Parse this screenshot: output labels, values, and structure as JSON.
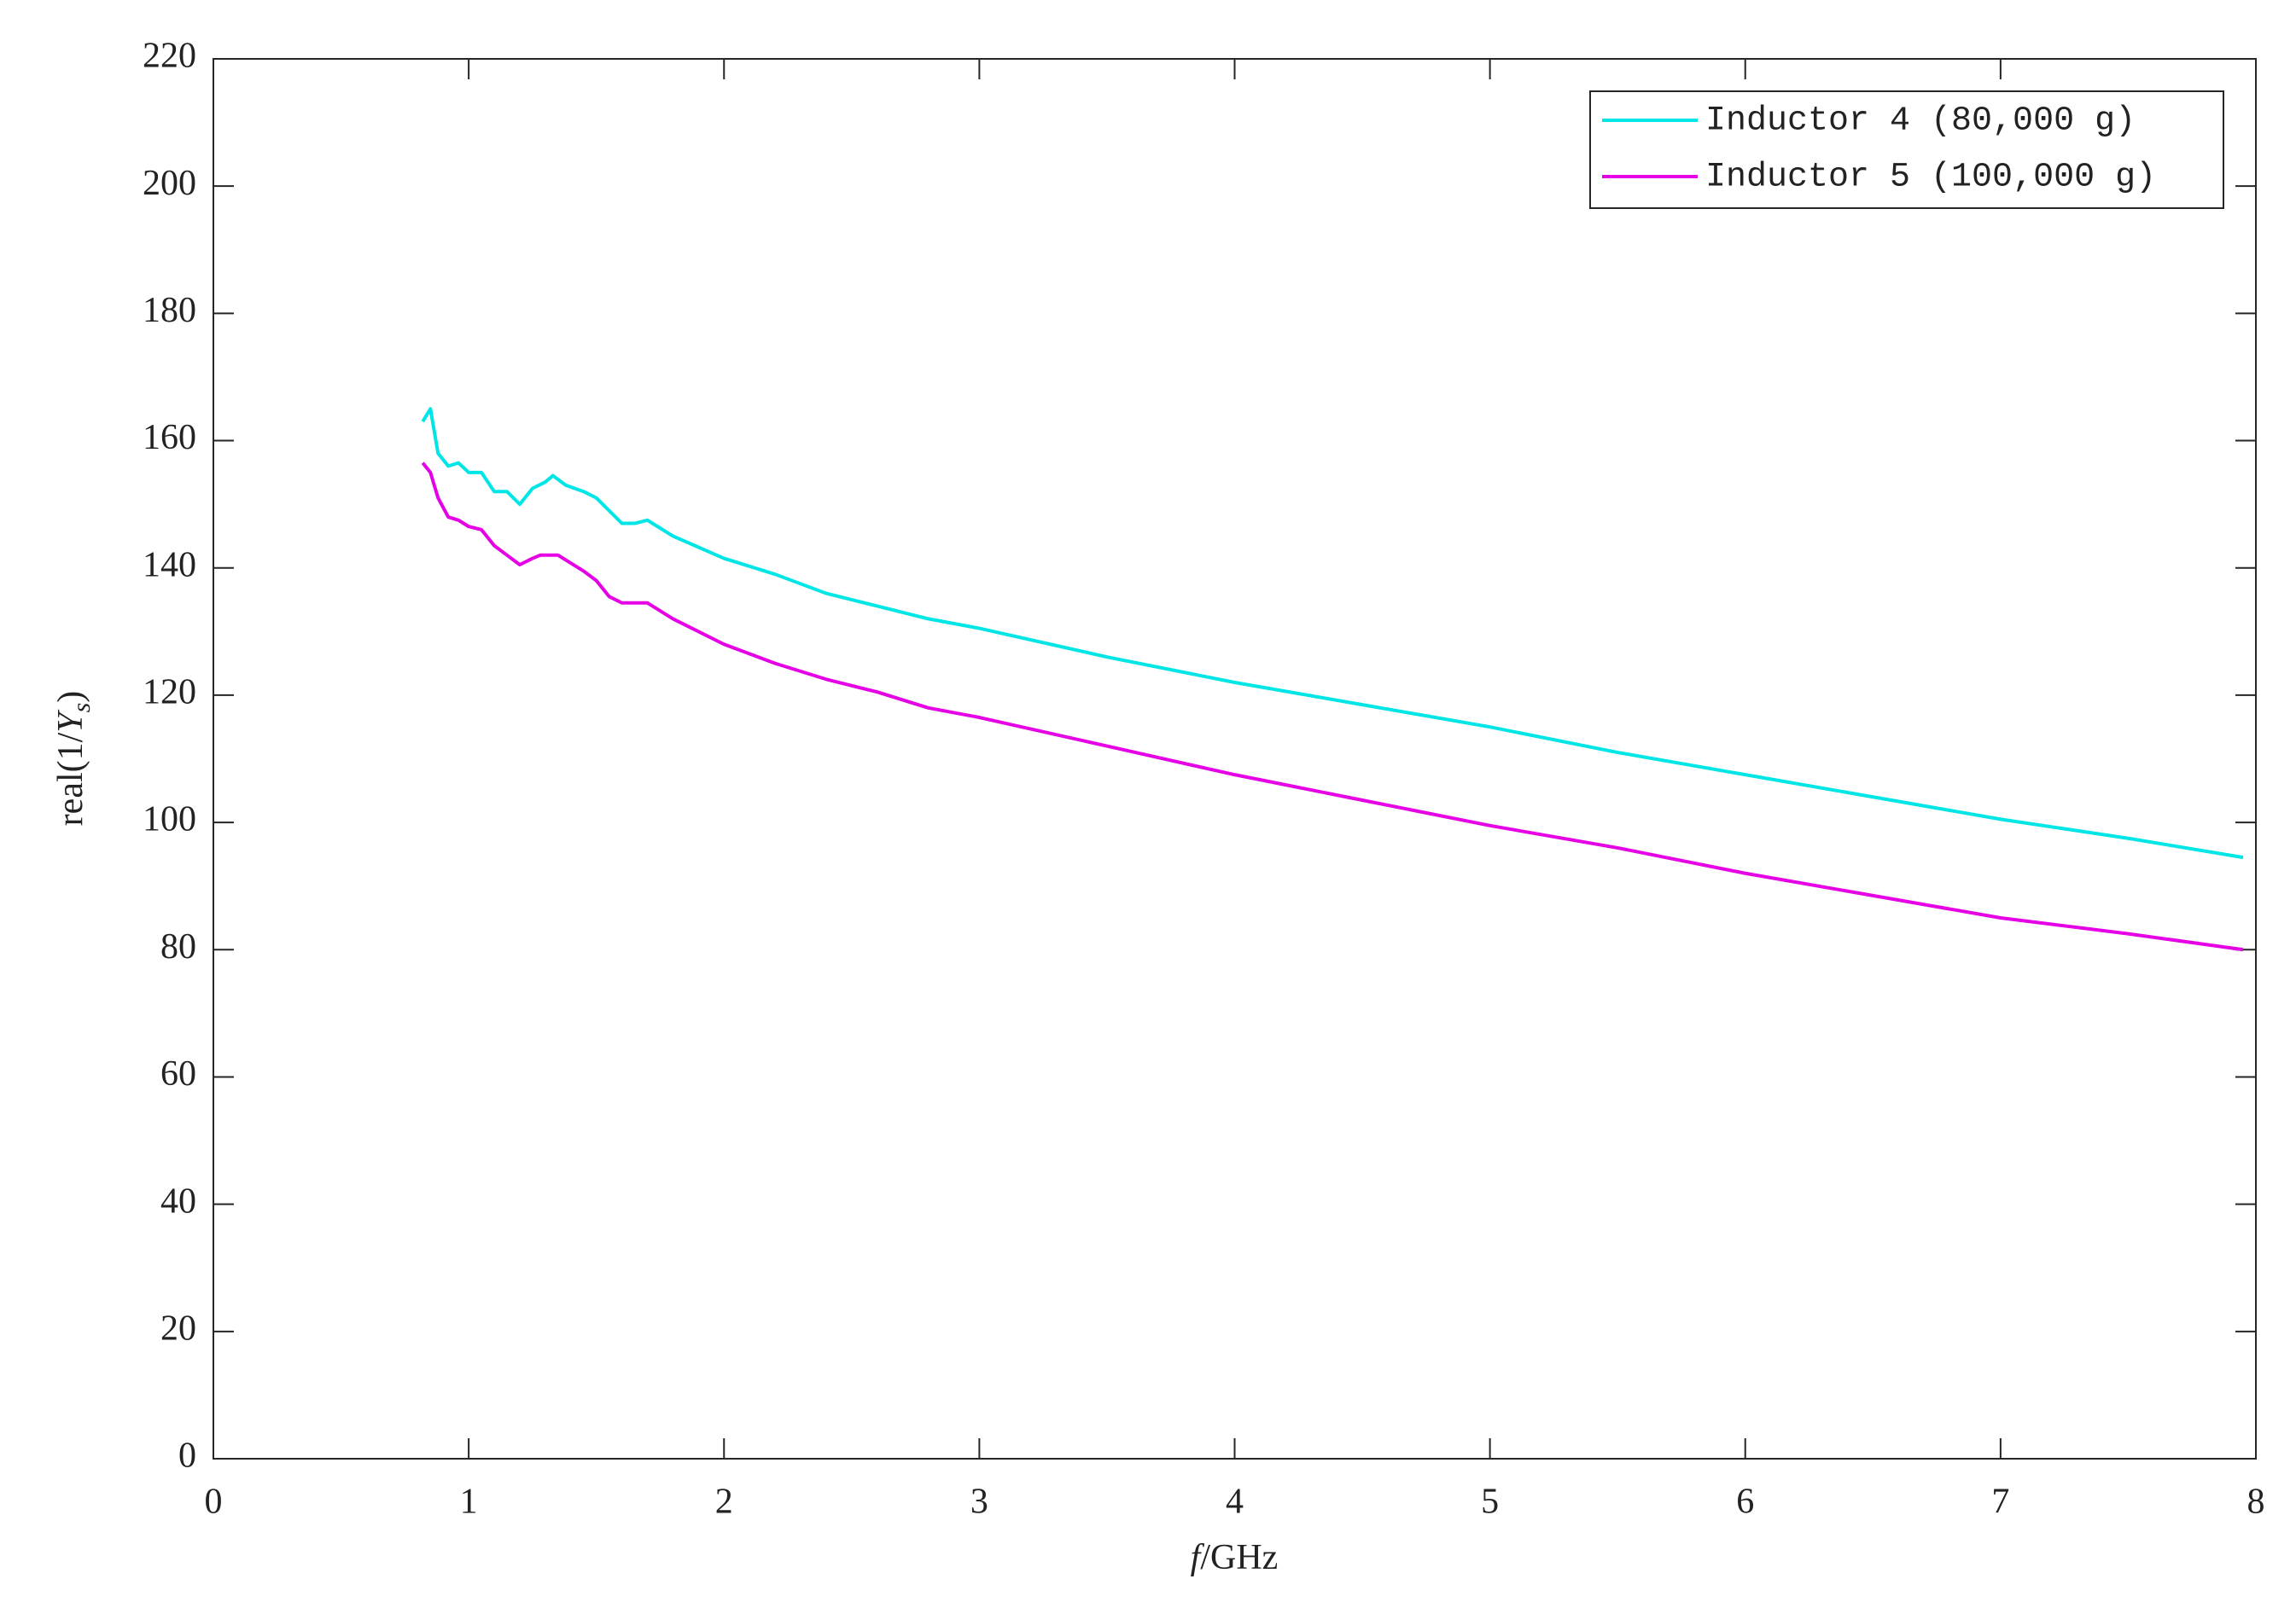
{
  "chart_data": {
    "type": "line",
    "xlabel": [
      "f",
      "/GHz"
    ],
    "ylabel": [
      "real(1/",
      "Y",
      "s",
      ")"
    ],
    "xlim": [
      0,
      8
    ],
    "xticks": [
      0,
      1,
      2,
      3,
      4,
      5,
      6,
      7,
      8
    ],
    "ylim": [
      0,
      220
    ],
    "yticks": [
      0,
      20,
      40,
      60,
      80,
      100,
      120,
      140,
      160,
      180,
      200,
      220
    ],
    "legend": "upper right",
    "series": [
      {
        "name": "Inductor 4 (80,000 g)",
        "color": "#00e5e5",
        "x": [
          0.82,
          0.85,
          0.88,
          0.92,
          0.96,
          1.0,
          1.05,
          1.1,
          1.15,
          1.2,
          1.25,
          1.3,
          1.33,
          1.38,
          1.45,
          1.5,
          1.6,
          1.65,
          1.7,
          1.8,
          2.0,
          2.2,
          2.4,
          2.6,
          2.8,
          3.0,
          3.5,
          4.0,
          4.5,
          5.0,
          5.5,
          6.0,
          6.5,
          7.0,
          7.5,
          7.95
        ],
        "values": [
          163,
          165,
          158,
          156,
          156.5,
          155,
          155,
          152,
          152,
          150,
          152.5,
          153.5,
          154.5,
          153,
          152,
          151,
          147,
          147,
          147.5,
          145,
          141.5,
          139,
          136,
          134,
          132,
          130.5,
          126,
          122,
          118.5,
          115,
          111,
          107.5,
          104,
          100.5,
          97.5,
          94.5
        ]
      },
      {
        "name": "Inductor 5 (100,000 g)",
        "color": "#e500e5",
        "x": [
          0.82,
          0.85,
          0.88,
          0.92,
          0.96,
          1.0,
          1.05,
          1.1,
          1.15,
          1.2,
          1.25,
          1.28,
          1.35,
          1.45,
          1.5,
          1.55,
          1.6,
          1.7,
          1.8,
          2.0,
          2.2,
          2.4,
          2.6,
          2.8,
          3.0,
          3.5,
          4.0,
          4.5,
          5.0,
          5.5,
          6.0,
          6.5,
          7.0,
          7.5,
          7.95
        ],
        "values": [
          156.5,
          155,
          151,
          148,
          147.5,
          146.5,
          146,
          143.5,
          142,
          140.5,
          141.5,
          142,
          142,
          139.5,
          138,
          135.5,
          134.5,
          134.5,
          132,
          128,
          125,
          122.5,
          120.5,
          118,
          116.5,
          112,
          107.5,
          103.5,
          99.5,
          96,
          92,
          88.5,
          85,
          82.5,
          80
        ]
      }
    ]
  }
}
